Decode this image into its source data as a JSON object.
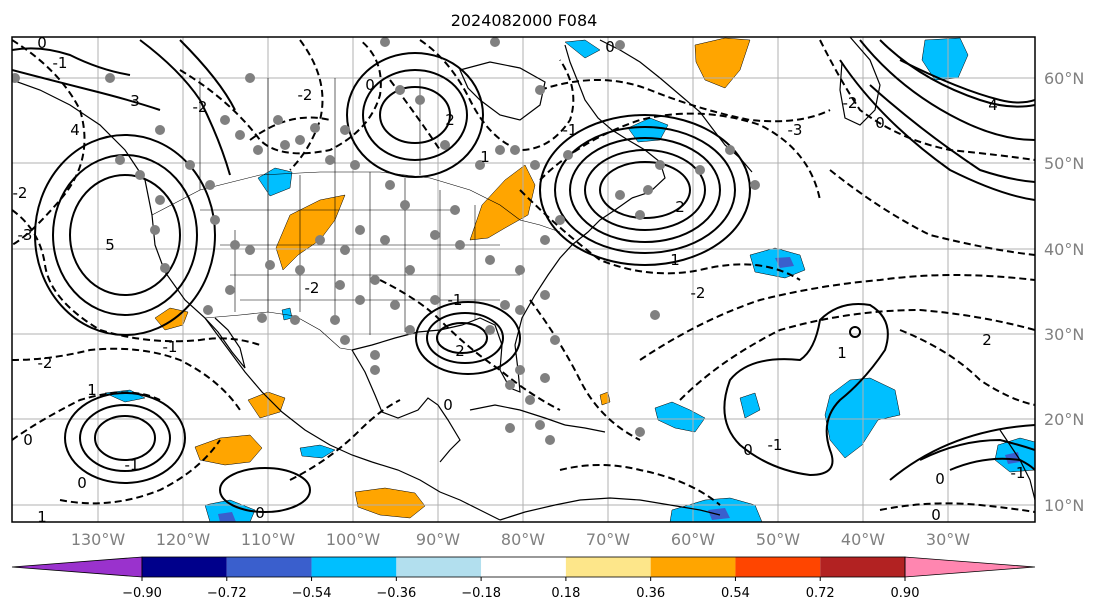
{
  "title": "2024082000 F084",
  "lon_labels": [
    "130°W",
    "120°W",
    "110°W",
    "100°W",
    "90°W",
    "80°W",
    "70°W",
    "60°W",
    "50°W",
    "40°W",
    "30°W"
  ],
  "lat_labels": [
    "60°N",
    "50°N",
    "40°N",
    "30°N",
    "20°N",
    "10°N"
  ],
  "colorbar": {
    "extend": "both",
    "labels": [
      "−0.90",
      "−0.72",
      "−0.54",
      "−0.36",
      "−0.18",
      "0.18",
      "0.36",
      "0.54",
      "0.72",
      "0.90"
    ],
    "colors": [
      "#9a32cd",
      "#00008b",
      "#3a5fcd",
      "#00bfff",
      "#b2dfee",
      "#ffffff",
      "#fde68a",
      "#ffa500",
      "#ff4500",
      "#b22222",
      "#ff86b0"
    ]
  },
  "fill_colors": {
    "positive": "#ffa500",
    "negative": "#00bfff",
    "negative_strong": "#3a5fcd"
  },
  "contour_labels": [
    "0",
    "-1",
    "3",
    "-2",
    "4",
    "5",
    "-3",
    "2",
    "1",
    "-2",
    "0",
    "-2",
    "-3",
    "2",
    "-1",
    "1",
    "0",
    "2",
    "-1",
    "-2",
    "0",
    "4",
    "-2",
    "-1",
    "0",
    "1",
    "0",
    "-1",
    "-2",
    "0",
    "-2",
    "1",
    "2",
    "-1",
    "0",
    "0",
    "-1",
    "0",
    "0",
    "1"
  ]
}
